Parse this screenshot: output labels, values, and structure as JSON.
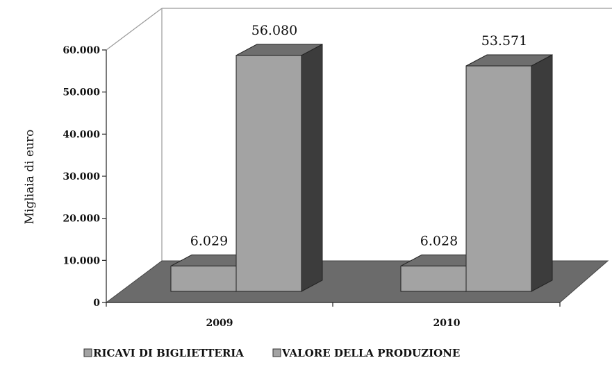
{
  "chart_data": {
    "type": "bar",
    "categories": [
      "2009",
      "2010"
    ],
    "series": [
      {
        "name": "RICAVI DI BIGLIETTERIA",
        "values": [
          6.029,
          6.028
        ],
        "labels": [
          "6.029",
          "6.028"
        ]
      },
      {
        "name": "VALORE DELLA PRODUZIONE",
        "values": [
          56.08,
          53.571
        ],
        "labels": [
          "56.080",
          "53.571"
        ]
      }
    ],
    "ylabel": "Migliaia di euro",
    "ylim": [
      0,
      60
    ],
    "yticks": [
      "0",
      "10.000",
      "20.000",
      "30.000",
      "40.000",
      "50.000",
      "60.000"
    ],
    "legend_position": "bottom",
    "colors": {
      "bar_front": "#a3a3a3",
      "bar_top": "#6e6e6e",
      "bar_side": "#3c3c3c",
      "floor": "#6b6b6b",
      "edge": "#222222"
    }
  }
}
